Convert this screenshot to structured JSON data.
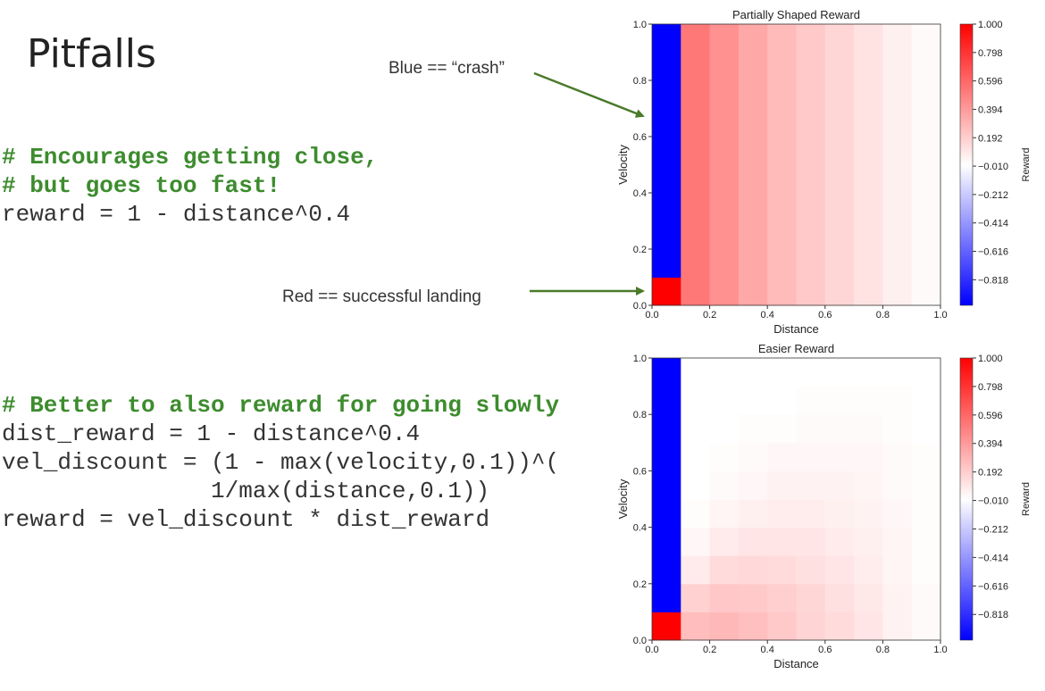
{
  "header": {
    "title": "Pitfalls"
  },
  "annotations": [
    "Blue == “crash”",
    "Red == successful landing"
  ],
  "code": [
    {
      "comments": [
        "# Encourages getting close,",
        "# but goes too fast!"
      ],
      "lines": [
        "reward = 1 - distance^0.4"
      ]
    },
    {
      "comments": [
        "# Better to also reward for going slowly"
      ],
      "lines": [
        "dist_reward = 1 - distance^0.4",
        "vel_discount = (1 - max(velocity,0.1))^(",
        "               1/max(distance,0.1))",
        "reward = vel_discount * dist_reward"
      ]
    }
  ],
  "chart_data": [
    {
      "type": "heatmap",
      "title": "Partially Shaped Reward",
      "xlabel": "Distance",
      "ylabel": "Velocity",
      "xbins": [
        0,
        0.1,
        0.2,
        0.3,
        0.4,
        0.5,
        0.6,
        0.7,
        0.8,
        0.9,
        1
      ],
      "ybins": [
        0,
        0.1,
        0.2,
        0.3,
        0.4,
        0.5,
        0.6,
        0.7,
        0.8,
        0.9,
        1
      ],
      "z": [
        [
          1,
          0.53,
          0.43,
          0.34,
          0.27,
          0.21,
          0.16,
          0.11,
          0.06,
          0.02
        ],
        [
          -1,
          0.53,
          0.43,
          0.34,
          0.27,
          0.21,
          0.16,
          0.11,
          0.06,
          0.02
        ],
        [
          -1,
          0.53,
          0.43,
          0.34,
          0.27,
          0.21,
          0.16,
          0.11,
          0.06,
          0.02
        ],
        [
          -1,
          0.53,
          0.43,
          0.34,
          0.27,
          0.21,
          0.16,
          0.11,
          0.06,
          0.02
        ],
        [
          -1,
          0.53,
          0.43,
          0.34,
          0.27,
          0.21,
          0.16,
          0.11,
          0.06,
          0.02
        ],
        [
          -1,
          0.53,
          0.43,
          0.34,
          0.27,
          0.21,
          0.16,
          0.11,
          0.06,
          0.02
        ],
        [
          -1,
          0.53,
          0.43,
          0.34,
          0.27,
          0.21,
          0.16,
          0.11,
          0.06,
          0.02
        ],
        [
          -1,
          0.53,
          0.43,
          0.34,
          0.27,
          0.21,
          0.16,
          0.11,
          0.06,
          0.02
        ],
        [
          -1,
          0.53,
          0.43,
          0.34,
          0.27,
          0.21,
          0.16,
          0.11,
          0.06,
          0.02
        ],
        [
          -1,
          0.53,
          0.43,
          0.34,
          0.27,
          0.21,
          0.16,
          0.11,
          0.06,
          0.02
        ]
      ],
      "xlim": [
        0,
        1
      ],
      "ylim": [
        0,
        1
      ],
      "xticks": [
        {
          "value": 0,
          "label": "0.0"
        },
        0.2,
        0.4,
        0.6,
        0.8,
        {
          "value": 1,
          "label": "1.0"
        }
      ],
      "yticks": [
        {
          "value": 0,
          "label": "0.0"
        },
        0.2,
        0.4,
        0.6,
        0.8,
        {
          "value": 1,
          "label": "1.0"
        }
      ],
      "colormap": "bwr",
      "clim": [
        -1,
        1
      ],
      "colorbar_label": "Reward",
      "cticks": [
        {
          "value": 1,
          "label": "1.000"
        },
        0.798,
        0.596,
        0.394,
        0.192,
        {
          "value": -0.01,
          "label": "−0.010"
        },
        {
          "value": -0.212,
          "label": "−0.212"
        },
        {
          "value": -0.414,
          "label": "−0.414"
        },
        {
          "value": -0.616,
          "label": "−0.616"
        },
        {
          "value": -0.818,
          "label": "−0.818"
        }
      ]
    },
    {
      "type": "heatmap",
      "title": "Easier Reward",
      "xlabel": "Distance",
      "ylabel": "Velocity",
      "xbins": [
        0,
        0.1,
        0.2,
        0.3,
        0.4,
        0.5,
        0.6,
        0.7,
        0.8,
        0.9,
        1
      ],
      "ybins": [
        0,
        0.1,
        0.2,
        0.3,
        0.4,
        0.5,
        0.6,
        0.7,
        0.8,
        0.9,
        1
      ],
      "z": [
        [
          1,
          0.26,
          0.28,
          0.25,
          0.21,
          0.17,
          0.14,
          0.1,
          0.05,
          0.02
        ],
        [
          -1,
          0.18,
          0.22,
          0.21,
          0.19,
          0.16,
          0.12,
          0.09,
          0.05,
          0.02
        ],
        [
          -1,
          0.08,
          0.14,
          0.15,
          0.14,
          0.12,
          0.1,
          0.07,
          0.04,
          0.01
        ],
        [
          -1,
          0.03,
          0.08,
          0.1,
          0.1,
          0.1,
          0.08,
          0.06,
          0.04,
          0.01
        ],
        [
          -1,
          0.01,
          0.04,
          0.06,
          0.07,
          0.07,
          0.06,
          0.05,
          0.03,
          0.01
        ],
        [
          -1,
          0,
          0.02,
          0.03,
          0.05,
          0.05,
          0.05,
          0.04,
          0.02,
          0.01
        ],
        [
          -1,
          0,
          0.01,
          0.02,
          0.03,
          0.03,
          0.03,
          0.03,
          0.02,
          0.01
        ],
        [
          -1,
          0,
          0,
          0.01,
          0.01,
          0.02,
          0.02,
          0.02,
          0.01,
          0
        ],
        [
          -1,
          0,
          0,
          0,
          0,
          0.01,
          0.01,
          0.01,
          0.01,
          0
        ],
        [
          -1,
          0,
          0,
          0,
          0,
          0,
          0,
          0,
          0,
          0
        ]
      ],
      "xlim": [
        0,
        1
      ],
      "ylim": [
        0,
        1
      ],
      "xticks": [
        {
          "value": 0,
          "label": "0.0"
        },
        0.2,
        0.4,
        0.6,
        0.8,
        {
          "value": 1,
          "label": "1.0"
        }
      ],
      "yticks": [
        {
          "value": 0,
          "label": "0.0"
        },
        0.2,
        0.4,
        0.6,
        0.8,
        {
          "value": 1,
          "label": "1.0"
        }
      ],
      "colormap": "bwr",
      "clim": [
        -1,
        1
      ],
      "colorbar_label": "Reward",
      "cticks": [
        {
          "value": 1,
          "label": "1.000"
        },
        0.798,
        0.596,
        0.394,
        0.192,
        {
          "value": -0.01,
          "label": "−0.010"
        },
        {
          "value": -0.212,
          "label": "−0.212"
        },
        {
          "value": -0.414,
          "label": "−0.414"
        },
        {
          "value": -0.616,
          "label": "−0.616"
        },
        {
          "value": -0.818,
          "label": "−0.818"
        }
      ]
    }
  ]
}
